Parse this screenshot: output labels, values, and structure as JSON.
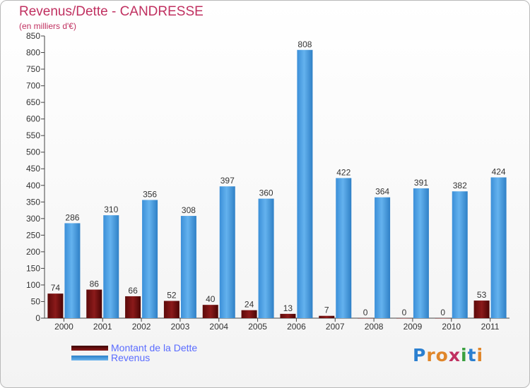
{
  "chart_data": {
    "type": "bar",
    "title": "Revenus/Dette - CANDRESSE",
    "subtitle": "(en milliers d'€)",
    "categories": [
      "2000",
      "2001",
      "2002",
      "2003",
      "2004",
      "2005",
      "2006",
      "2007",
      "2008",
      "2009",
      "2010",
      "2011"
    ],
    "series": [
      {
        "name": "Montant de la Dette",
        "color": "#8b1a1a",
        "values": [
          74,
          86,
          66,
          52,
          40,
          24,
          13,
          7,
          0,
          0,
          0,
          53
        ]
      },
      {
        "name": "Revenus",
        "color": "#4aa0e6",
        "values": [
          286,
          310,
          356,
          308,
          397,
          360,
          808,
          422,
          364,
          391,
          382,
          424
        ]
      }
    ],
    "ylim": [
      0,
      850
    ],
    "yticks": [
      0,
      50,
      100,
      150,
      200,
      250,
      300,
      350,
      400,
      450,
      500,
      550,
      600,
      650,
      700,
      750,
      800,
      850
    ],
    "grid": false,
    "legend": "bottom-left"
  },
  "logo_text": "Proxiti"
}
